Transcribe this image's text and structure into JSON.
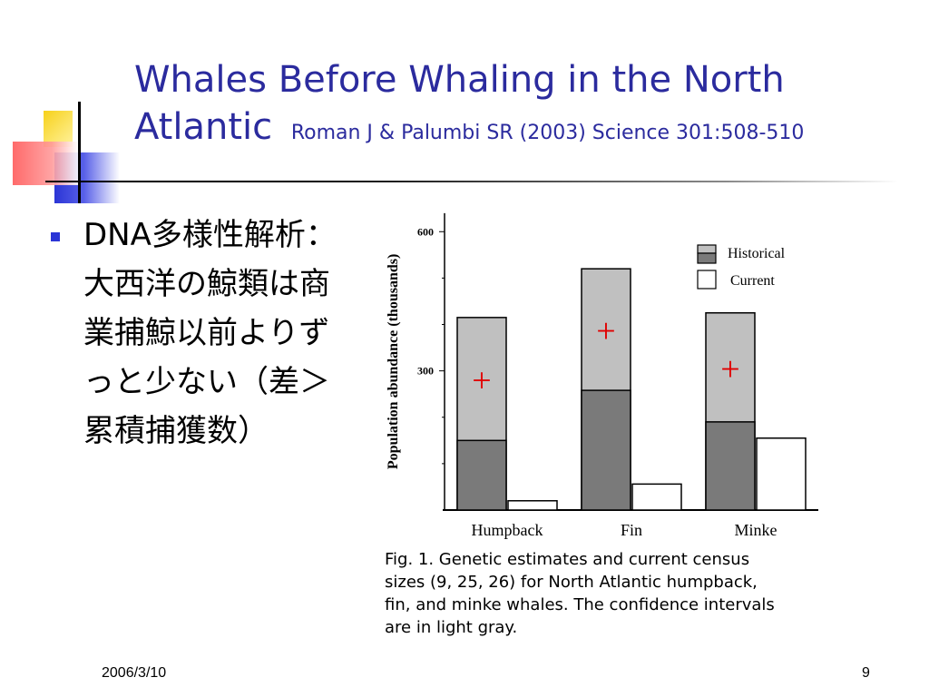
{
  "slide": {
    "title_main": "Whales Before Whaling in the North Atlantic",
    "title_citation": "Roman J & Palumbi SR (2003) Science 301:508-510",
    "bullet": "DNA多様性解析：大西洋の鯨類は商業捕鯨以前よりずっと少ない（差＞累積捕獲数）",
    "date": "2006/3/10",
    "page": "9",
    "caption_line1": "Fig. 1. Genetic estimates and current census",
    "caption_line2": "sizes (9, 25, 26) for North Atlantic humpback,",
    "caption_line3": "fin, and minke whales. The confidence intervals",
    "caption_line4": "are in light gray."
  },
  "chart_data": {
    "type": "bar",
    "ylabel": "Population abundance (thousands)",
    "xlabel": "",
    "categories": [
      "Humpback",
      "Fin",
      "Minke"
    ],
    "yticks": [
      300,
      600
    ],
    "ylim": [
      0,
      640
    ],
    "series": [
      {
        "name": "Historical",
        "values": [
          150,
          258,
          190
        ]
      },
      {
        "name": "Current",
        "values": [
          20,
          56,
          155
        ]
      }
    ],
    "confidence_upper": [
      415,
      520,
      425
    ],
    "markers": [
      "+",
      "+",
      "+"
    ],
    "legend_position": "top-right",
    "colors": {
      "historical": "#7a7a7a",
      "ci": "#c0c0c0",
      "current": "#ffffff",
      "marker": "#e00000",
      "axis": "#000000"
    }
  }
}
